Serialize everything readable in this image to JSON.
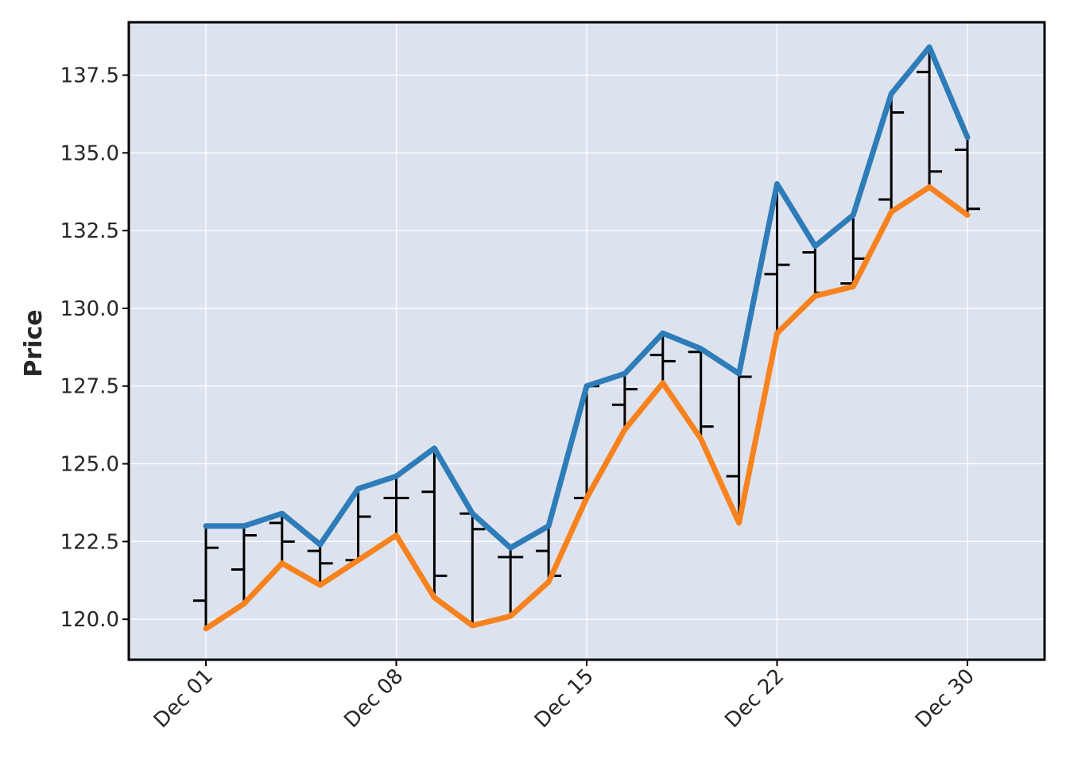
{
  "chart_data": {
    "type": "ohlc",
    "title": "",
    "xlabel": "",
    "ylabel": "Price",
    "ylim": [
      118.7,
      139.2
    ],
    "yticks": [
      "120.0",
      "122.5",
      "125.0",
      "127.5",
      "130.0",
      "132.5",
      "135.0",
      "137.5"
    ],
    "ytick_values": [
      120.0,
      122.5,
      125.0,
      127.5,
      130.0,
      132.5,
      135.0,
      137.5
    ],
    "xticks": [
      "Dec 01",
      "Dec 08",
      "Dec 15",
      "Dec 22",
      "Dec 30"
    ],
    "xtick_index": [
      0,
      5,
      10,
      15,
      20
    ],
    "grid": true,
    "background_color": "#dde3ee",
    "bar_color": "#000000",
    "bars": [
      {
        "open": 120.6,
        "high": 123.0,
        "low": 119.7,
        "close": 122.3
      },
      {
        "open": 121.6,
        "high": 123.0,
        "low": 120.5,
        "close": 122.7
      },
      {
        "open": 123.1,
        "high": 123.4,
        "low": 121.8,
        "close": 122.5
      },
      {
        "open": 122.2,
        "high": 122.4,
        "low": 121.1,
        "close": 121.8
      },
      {
        "open": 121.9,
        "high": 124.2,
        "low": 121.9,
        "close": 123.3
      },
      {
        "open": 123.9,
        "high": 124.6,
        "low": 122.7,
        "close": 123.9
      },
      {
        "open": 124.1,
        "high": 125.5,
        "low": 120.7,
        "close": 121.4
      },
      {
        "open": 123.4,
        "high": 123.4,
        "low": 119.8,
        "close": 122.9
      },
      {
        "open": 122.0,
        "high": 122.3,
        "low": 120.1,
        "close": 122.0
      },
      {
        "open": 122.2,
        "high": 123.0,
        "low": 121.2,
        "close": 121.4
      },
      {
        "open": 123.9,
        "high": 127.5,
        "low": 123.9,
        "close": 127.5
      },
      {
        "open": 126.9,
        "high": 127.9,
        "low": 126.1,
        "close": 127.4
      },
      {
        "open": 128.5,
        "high": 129.2,
        "low": 127.6,
        "close": 128.3
      },
      {
        "open": 128.6,
        "high": 128.7,
        "low": 125.8,
        "close": 126.2
      },
      {
        "open": 124.6,
        "high": 127.9,
        "low": 123.1,
        "close": 127.8
      },
      {
        "open": 131.1,
        "high": 134.0,
        "low": 129.2,
        "close": 131.4
      },
      {
        "open": 131.8,
        "high": 132.0,
        "low": 130.4,
        "close": 130.5
      },
      {
        "open": 130.8,
        "high": 133.0,
        "low": 130.7,
        "close": 131.6
      },
      {
        "open": 133.5,
        "high": 136.9,
        "low": 133.1,
        "close": 136.3
      },
      {
        "open": 137.6,
        "high": 138.4,
        "low": 133.9,
        "close": 134.4
      },
      {
        "open": 135.1,
        "high": 135.5,
        "low": 133.0,
        "close": 133.2
      }
    ],
    "series": [
      {
        "color": "#2e7cb8",
        "values": [
          123.0,
          123.0,
          123.4,
          122.4,
          124.2,
          124.6,
          125.5,
          123.4,
          122.3,
          123.0,
          127.5,
          127.9,
          129.2,
          128.7,
          127.9,
          134.0,
          132.0,
          133.0,
          136.9,
          138.4,
          135.5
        ]
      },
      {
        "color": "#f7821e",
        "values": [
          119.7,
          120.5,
          121.8,
          121.1,
          121.9,
          122.7,
          120.7,
          119.8,
          120.1,
          121.2,
          123.9,
          126.1,
          127.6,
          125.8,
          123.1,
          129.2,
          130.4,
          130.7,
          133.1,
          133.9,
          133.0
        ]
      }
    ]
  }
}
